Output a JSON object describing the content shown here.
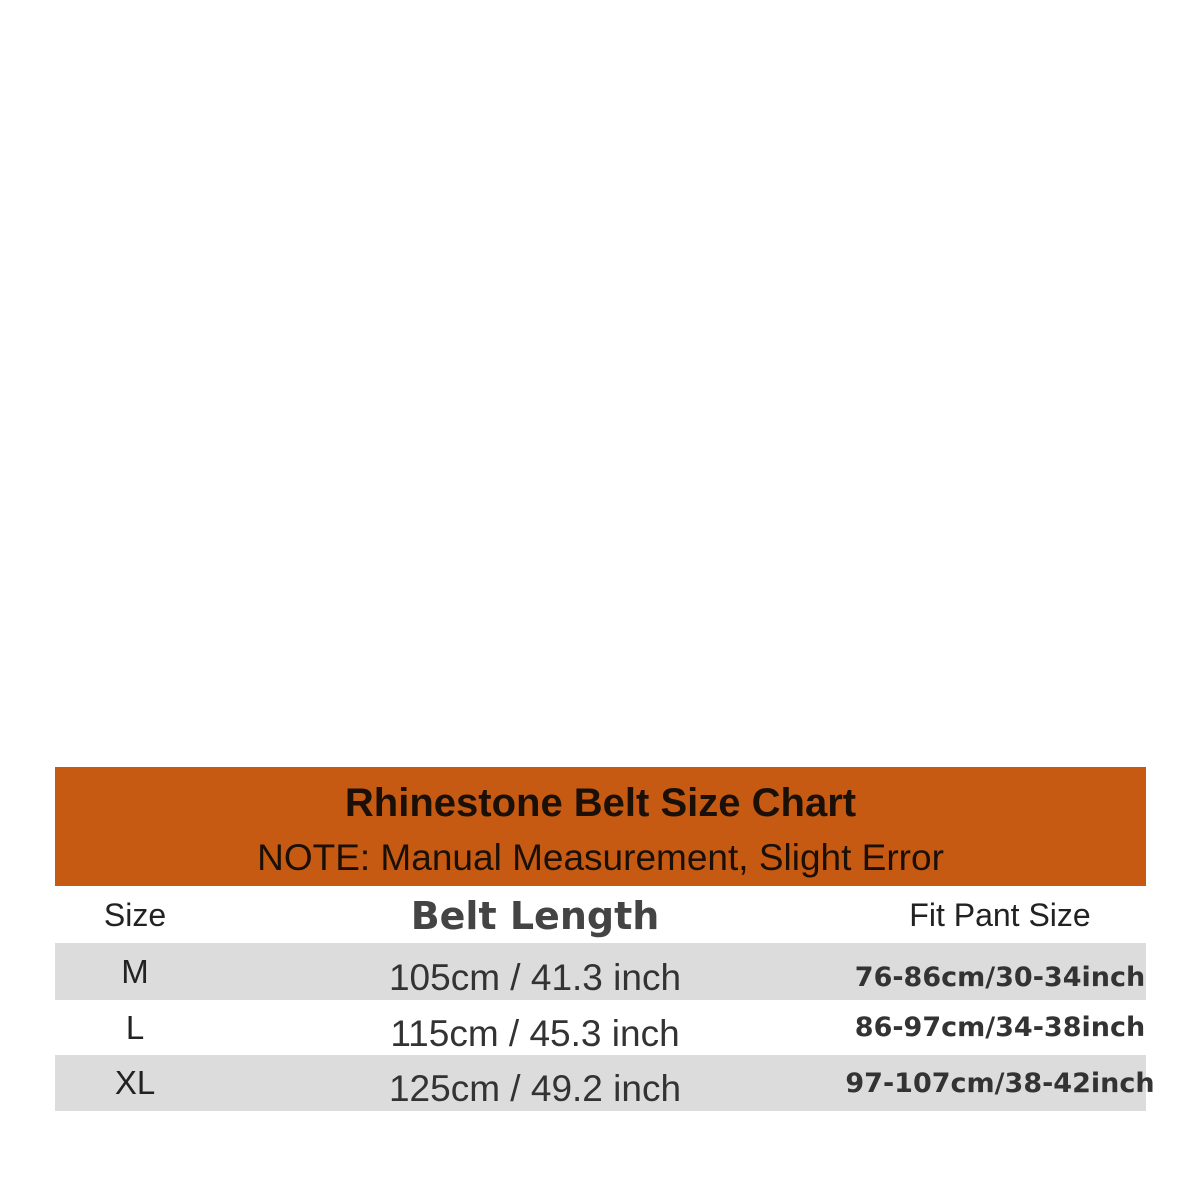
{
  "colors": {
    "header_bg": "#c65a12",
    "row_alt_bg": "#dcdcdc"
  },
  "header": {
    "title": "Rhinestone Belt Size Chart",
    "note": "NOTE: Manual Measurement, Slight Error"
  },
  "table": {
    "columns": [
      "Size",
      "Belt Length",
      "Fit Pant Size"
    ],
    "rows": [
      {
        "size": "M",
        "belt_length": "105cm / 41.3 inch",
        "fit_pant_size": "76-86cm/30-34inch"
      },
      {
        "size": "L",
        "belt_length": "115cm / 45.3 inch",
        "fit_pant_size": "86-97cm/34-38inch"
      },
      {
        "size": "XL",
        "belt_length": "125cm / 49.2 inch",
        "fit_pant_size": "97-107cm/38-42inch"
      }
    ]
  }
}
